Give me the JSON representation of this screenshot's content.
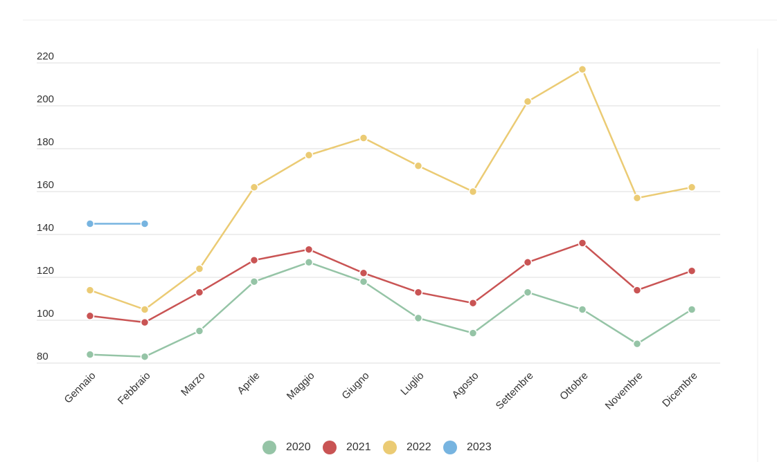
{
  "chart_data": {
    "type": "line",
    "categories": [
      "Gennaio",
      "Febbraio",
      "Marzo",
      "Aprile",
      "Maggio",
      "Giugno",
      "Luglio",
      "Agosto",
      "Settembre",
      "Ottobre",
      "Novembre",
      "Dicembre"
    ],
    "series": [
      {
        "name": "2020",
        "color": "#95c4a6",
        "values": [
          84,
          83,
          95,
          118,
          127,
          118,
          101,
          94,
          113,
          105,
          89,
          105
        ]
      },
      {
        "name": "2021",
        "color": "#c95454",
        "values": [
          102,
          99,
          113,
          128,
          133,
          122,
          113,
          108,
          127,
          136,
          114,
          123
        ]
      },
      {
        "name": "2022",
        "color": "#ebcb74",
        "values": [
          114,
          105,
          124,
          162,
          177,
          185,
          172,
          160,
          202,
          217,
          157,
          162
        ]
      },
      {
        "name": "2023",
        "color": "#77b4e0",
        "values": [
          145,
          145,
          null,
          null,
          null,
          null,
          null,
          null,
          null,
          null,
          null,
          null
        ]
      }
    ],
    "ylim": [
      80,
      220
    ],
    "yticks": [
      80,
      100,
      120,
      140,
      160,
      180,
      200,
      220
    ],
    "grid": true,
    "legend": "bottom"
  }
}
